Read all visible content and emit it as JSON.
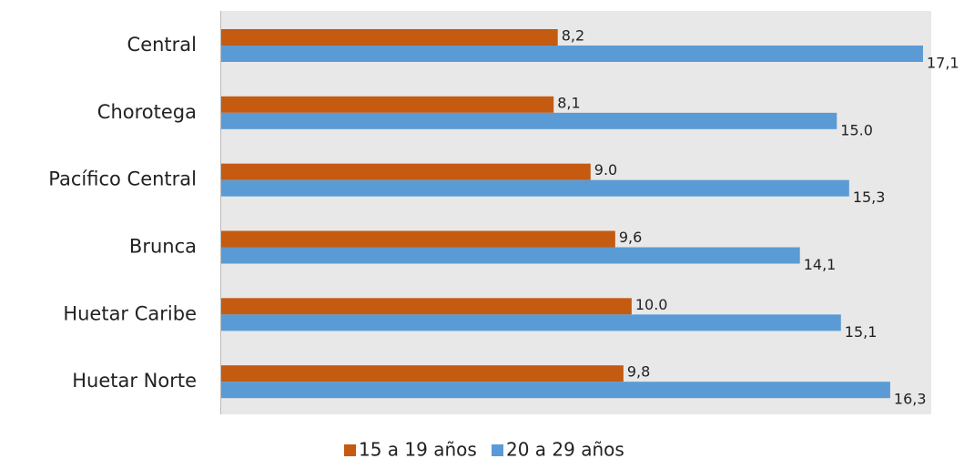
{
  "chart_data": {
    "type": "barh",
    "categories": [
      "Central",
      "Chorotega",
      "Pacífico Central",
      "Brunca",
      "Huetar Caribe",
      "Huetar Norte"
    ],
    "series": [
      {
        "name": "15 a 19 años",
        "color": "#c55a11",
        "values": [
          8.2,
          8.1,
          9.0,
          9.6,
          10.0,
          9.8
        ],
        "value_labels": [
          "8,2",
          "8,1",
          "9.0",
          "9,6",
          "10.0",
          "9,8"
        ]
      },
      {
        "name": "20 a 29 años",
        "color": "#5b9bd5",
        "values": [
          17.1,
          15.0,
          15.3,
          14.1,
          15.1,
          16.3
        ],
        "value_labels": [
          "17,1",
          "15.0",
          "15,3",
          "14,1",
          "15,1",
          "16,3"
        ]
      }
    ],
    "xlim": [
      0,
      17.3
    ]
  }
}
